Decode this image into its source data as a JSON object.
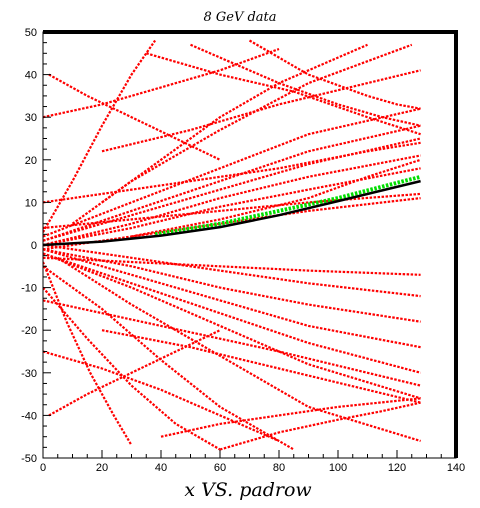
{
  "chart_data": {
    "type": "scatter",
    "title": "8 GeV data",
    "xlabel": "x VS. padrow",
    "ylabel": "",
    "xlim": [
      0,
      140
    ],
    "ylim": [
      -50,
      50
    ],
    "xticks": [
      0,
      20,
      40,
      60,
      80,
      100,
      120,
      140
    ],
    "yticks": [
      -50,
      -40,
      -30,
      -20,
      -10,
      0,
      10,
      20,
      30,
      40,
      50
    ],
    "grid": false,
    "series": [
      {
        "color": "#ff0000",
        "marker": "star",
        "tracks": [
          {
            "x": [
              0,
              30,
              60,
              90,
              128
            ],
            "y": [
              2,
              10,
              18,
              26,
              32
            ]
          },
          {
            "x": [
              0,
              30,
              60,
              90,
              128
            ],
            "y": [
              1,
              8,
              15,
              22,
              28
            ]
          },
          {
            "x": [
              0,
              30,
              60,
              90,
              128
            ],
            "y": [
              1,
              7,
              13,
              19,
              25
            ]
          },
          {
            "x": [
              0,
              30,
              60,
              90,
              128
            ],
            "y": [
              0,
              5,
              11,
              16,
              21
            ]
          },
          {
            "x": [
              0,
              30,
              60,
              90,
              128
            ],
            "y": [
              0,
              4,
              9,
              13,
              18
            ]
          },
          {
            "x": [
              0,
              30,
              60,
              90,
              128
            ],
            "y": [
              -1,
              2,
              5,
              8,
              11
            ]
          },
          {
            "x": [
              0,
              30,
              60,
              90,
              128
            ],
            "y": [
              0,
              -3,
              -6,
              -9,
              -12
            ]
          },
          {
            "x": [
              0,
              30,
              60,
              90,
              128
            ],
            "y": [
              -1,
              -5,
              -10,
              -14,
              -18
            ]
          },
          {
            "x": [
              0,
              30,
              60,
              90,
              128
            ],
            "y": [
              -1,
              -7,
              -13,
              -19,
              -24
            ]
          },
          {
            "x": [
              0,
              30,
              60,
              90,
              128
            ],
            "y": [
              -2,
              -9,
              -16,
              -23,
              -30
            ]
          },
          {
            "x": [
              0,
              30,
              60,
              90,
              128
            ],
            "y": [
              -2,
              -10,
              -19,
              -28,
              -36
            ]
          },
          {
            "x": [
              5,
              30,
              60,
              90,
              128
            ],
            "y": [
              -3,
              -14,
              -26,
              -38,
              -46
            ]
          },
          {
            "x": [
              10,
              30,
              60,
              90,
              125
            ],
            "y": [
              5,
              15,
              27,
              38,
              47
            ]
          },
          {
            "x": [
              20,
              40,
              60,
              80,
              110
            ],
            "y": [
              10,
              20,
              30,
              38,
              47
            ]
          },
          {
            "x": [
              0,
              20,
              40,
              60,
              85
            ],
            "y": [
              -5,
              -15,
              -27,
              -38,
              -48
            ]
          },
          {
            "x": [
              0,
              15,
              30,
              45,
              60
            ],
            "y": [
              -10,
              -22,
              -33,
              -42,
              -48
            ]
          },
          {
            "x": [
              0,
              10,
              20,
              30,
              38
            ],
            "y": [
              3,
              15,
              28,
              40,
              48
            ]
          },
          {
            "x": [
              0,
              8,
              16,
              24,
              30
            ],
            "y": [
              -4,
              -18,
              -30,
              -40,
              -47
            ]
          },
          {
            "x": [
              35,
              60,
              85,
              110,
              128
            ],
            "y": [
              45,
              40,
              36,
              30,
              26
            ]
          },
          {
            "x": [
              40,
              60,
              80,
              100,
              128
            ],
            "y": [
              -45,
              -42,
              -40,
              -38,
              -36
            ]
          },
          {
            "x": [
              20,
              50,
              80,
              110,
              128
            ],
            "y": [
              -20,
              -24,
              -29,
              -34,
              -37
            ]
          },
          {
            "x": [
              20,
              50,
              80,
              110,
              128
            ],
            "y": [
              22,
              27,
              33,
              38,
              41
            ]
          },
          {
            "x": [
              0,
              40,
              80,
              110,
              128
            ],
            "y": [
              -13,
              -19,
              -25,
              -30,
              -33
            ]
          },
          {
            "x": [
              0,
              40,
              80,
              110,
              128
            ],
            "y": [
              10,
              14,
              18,
              22,
              24
            ]
          },
          {
            "x": [
              30,
              60,
              90,
              110,
              128
            ],
            "y": [
              2,
              6,
              11,
              16,
              20
            ]
          },
          {
            "x": [
              50,
              80,
              100,
              115,
              128
            ],
            "y": [
              47,
              38,
              33,
              30,
              28
            ]
          },
          {
            "x": [
              60,
              80,
              100,
              115,
              128
            ],
            "y": [
              -48,
              -44,
              -41,
              -39,
              -37
            ]
          },
          {
            "x": [
              0,
              20,
              40,
              60,
              80
            ],
            "y": [
              30,
              33,
              37,
              41,
              46
            ]
          },
          {
            "x": [
              0,
              20,
              40,
              60,
              80
            ],
            "y": [
              -25,
              -29,
              -34,
              -40,
              -46
            ]
          },
          {
            "x": [
              0,
              30,
              60,
              90,
              128
            ],
            "y": [
              4,
              6,
              8,
              10,
              12
            ]
          },
          {
            "x": [
              0,
              30,
              60,
              90,
              128
            ],
            "y": [
              -3,
              -4,
              -5,
              -6,
              -7
            ]
          },
          {
            "x": [
              70,
              90,
              110,
              120,
              128
            ],
            "y": [
              48,
              40,
              35,
              33,
              32
            ]
          },
          {
            "x": [
              2,
              15,
              30,
              45,
              60
            ],
            "y": [
              40,
              35,
              30,
              25,
              20
            ]
          },
          {
            "x": [
              2,
              15,
              30,
              45,
              60
            ],
            "y": [
              -40,
              -35,
              -30,
              -25,
              -20
            ]
          }
        ]
      },
      {
        "color": "#00dd00",
        "marker": "star",
        "tracks": [
          {
            "x": [
              38,
              60,
              80,
              100,
              128
            ],
            "y": [
              2.5,
              5,
              8,
              11,
              16
            ]
          }
        ]
      },
      {
        "color": "#000000",
        "marker": "dot",
        "tracks": [
          {
            "x": [
              0,
              20,
              40,
              60,
              80,
              100,
              128
            ],
            "y": [
              0,
              0.8,
              2.2,
              4.2,
              7,
              10.3,
              15
            ]
          }
        ]
      }
    ]
  }
}
